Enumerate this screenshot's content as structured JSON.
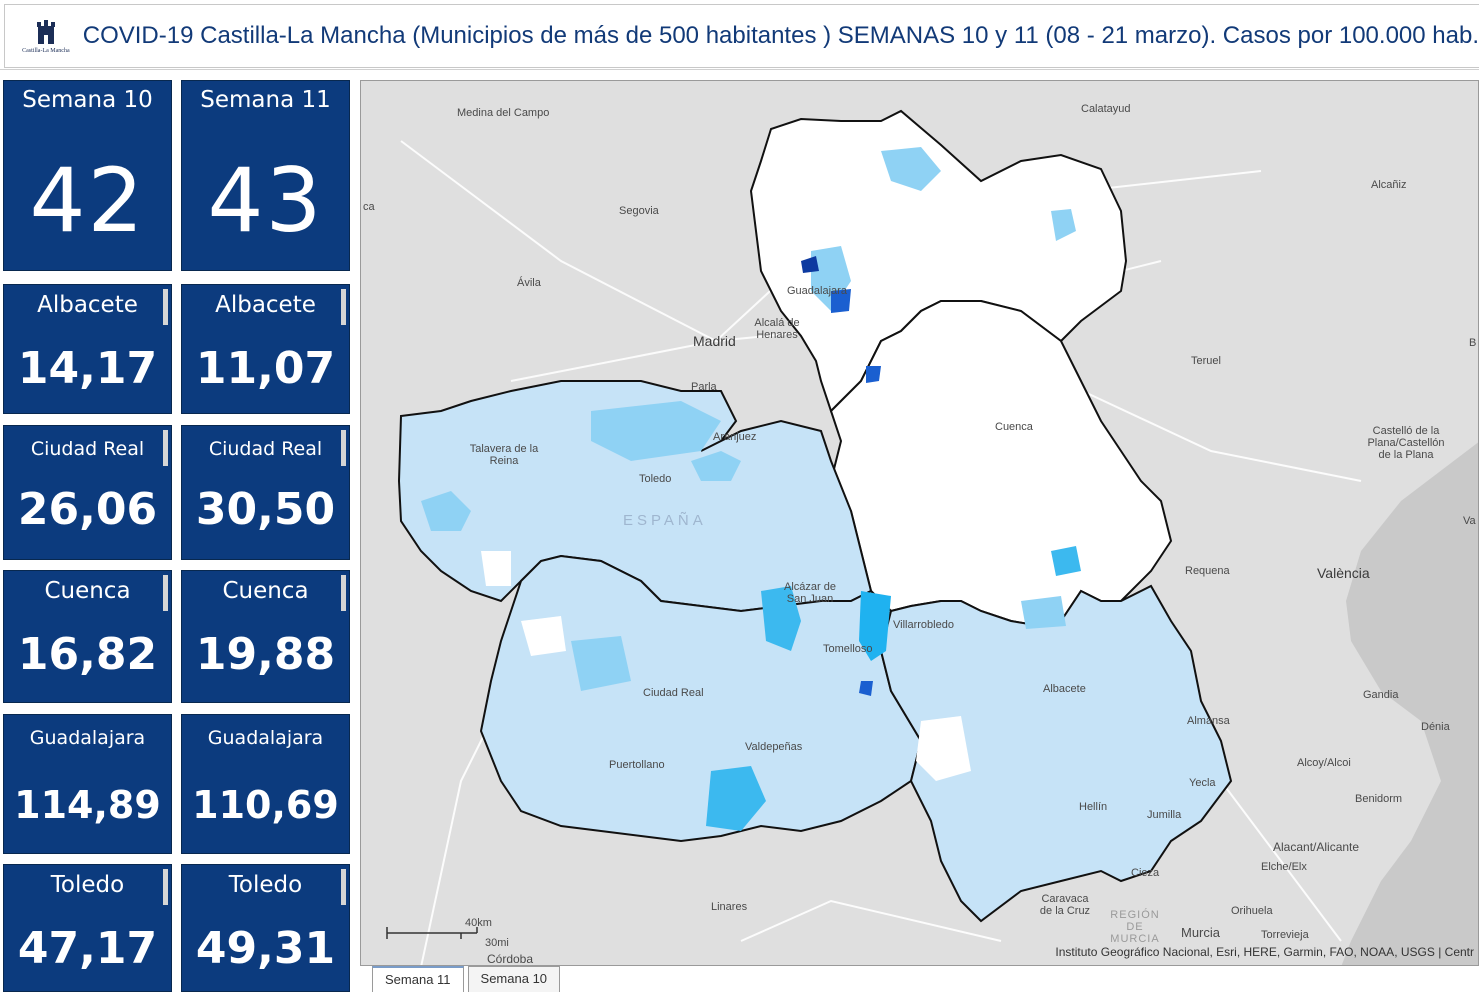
{
  "header": {
    "title": "COVID-19 Castilla-La Mancha (Municipios de más de 500 habitantes ) SEMANAS 10 y 11 (08 - 21 marzo). Casos por 100.000 hab.",
    "logo_text": "Castilla-La Mancha"
  },
  "weeks": [
    {
      "label": "Semana 10",
      "value": "42"
    },
    {
      "label": "Semana 11",
      "value": "43"
    }
  ],
  "provinces": [
    {
      "left": {
        "label": "Albacete",
        "value": "14,17"
      },
      "right": {
        "label": "Albacete",
        "value": "11,07"
      }
    },
    {
      "left": {
        "label": "Ciudad Real",
        "value": "26,06"
      },
      "right": {
        "label": "Ciudad Real",
        "value": "30,50"
      }
    },
    {
      "left": {
        "label": "Cuenca",
        "value": "16,82"
      },
      "right": {
        "label": "Cuenca",
        "value": "19,88"
      }
    },
    {
      "left": {
        "label": "Guadalajara",
        "value": "114,89"
      },
      "right": {
        "label": "Guadalajara",
        "value": "110,69"
      }
    },
    {
      "left": {
        "label": "Toledo",
        "value": "47,17"
      },
      "right": {
        "label": "Toledo",
        "value": "49,31"
      }
    }
  ],
  "map": {
    "places": {
      "medina": "Medina del Campo",
      "calatayud": "Calatayud",
      "alcaniz": "Alcañiz",
      "segovia": "Segovia",
      "avila": "Ávila",
      "guadalajara": "Guadalajara",
      "alcala": "Alcalá de Henares",
      "madrid": "Madrid",
      "parla": "Parla",
      "teruel": "Teruel",
      "aranjuez": "Aranjuez",
      "talavera": "Talavera de la Reina",
      "toledo": "Toledo",
      "cuenca": "Cuenca",
      "castello": "Castelló de la Plana/Castellón de la Plana",
      "espana": "ESPAÑA",
      "requena": "Requena",
      "valencia": "València",
      "alcazar": "Alcázar de San Juan",
      "villarrobledo": "Villarrobledo",
      "tomelloso": "Tomelloso",
      "ciudadreal": "Ciudad Real",
      "albacete": "Albacete",
      "gandia": "Gandia",
      "almansa": "Almansa",
      "denia": "Dénia",
      "valdepenas": "Valdepeñas",
      "puertollano": "Puertollano",
      "alcoy": "Alcoy/Alcoi",
      "yecla": "Yecla",
      "benidorm": "Benidorm",
      "hellin": "Hellín",
      "jumilla": "Jumilla",
      "alicante": "Alacant/Alicante",
      "elche": "Elche/Elx",
      "cieza": "Cieza",
      "caravaca": "Caravaca de la Cruz",
      "linares": "Linares",
      "orihuela": "Orihuela",
      "region": "REGIÓN DE MURCIA",
      "murcia": "Murcia",
      "torrevieja": "Torrevieja",
      "cordoba": "Córdoba",
      "ca": "ca",
      "b": "B",
      "va": "Va"
    },
    "scale_km": "40km",
    "scale_mi": "30mi",
    "attribution": "Instituto Geográfico Nacional, Esri, HERE, Garmin, FAO, NOAA, USGS | Centr"
  },
  "tabs": [
    {
      "label": "Semana 11",
      "active": true
    },
    {
      "label": "Semana 10",
      "active": false
    }
  ],
  "colors": {
    "card_bg": "#0c3b7e",
    "title_text": "#123a78",
    "region_light": "#c6e3f7",
    "region_mid": "#8fd2f4",
    "region_strong": "#3cb9ef",
    "region_dark": "#1a5fd0"
  }
}
